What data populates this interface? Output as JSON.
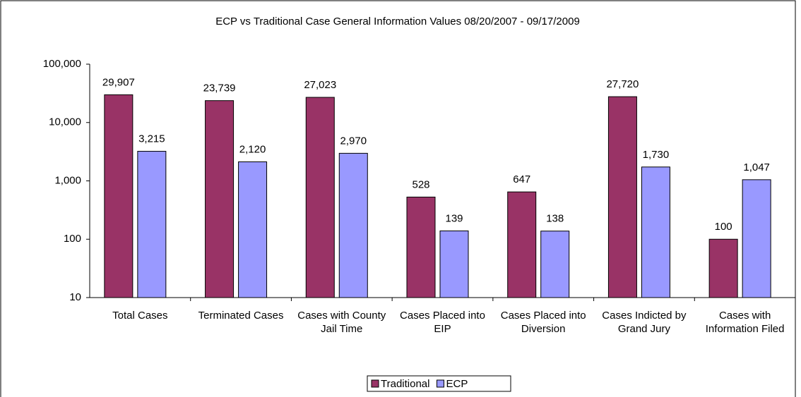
{
  "chart_data": {
    "type": "bar",
    "title": "ECP vs Traditional Case General Information Values 08/20/2007 - 09/17/2009",
    "categories": [
      "Total Cases",
      "Terminated Cases",
      "Cases with County Jail Time",
      "Cases Placed into EIP",
      "Cases Placed into Diversion",
      "Cases Indicted by Grand Jury",
      "Cases with Information Filed"
    ],
    "series": [
      {
        "name": "Traditional",
        "color": "#993366",
        "values": [
          29907,
          23739,
          27023,
          528,
          647,
          27720,
          100
        ],
        "value_labels": [
          "29,907",
          "23,739",
          "27,023",
          "528",
          "647",
          "27,720",
          "100"
        ]
      },
      {
        "name": "ECP",
        "color": "#9999ff",
        "values": [
          3215,
          2120,
          2970,
          139,
          138,
          1730,
          1047
        ],
        "value_labels": [
          "3,215",
          "2,120",
          "2,970",
          "139",
          "138",
          "1,730",
          "1,047"
        ]
      }
    ],
    "ylim": [
      10,
      100000
    ],
    "yticks": [
      10,
      {
        "value": 100,
        "label": "100"
      },
      {
        "value": 1000,
        "label": "1,000"
      },
      {
        "value": 10000,
        "label": "10,000"
      },
      {
        "value": 100000,
        "label": "100,000"
      }
    ],
    "log_scale": true,
    "legend": "bottom"
  }
}
